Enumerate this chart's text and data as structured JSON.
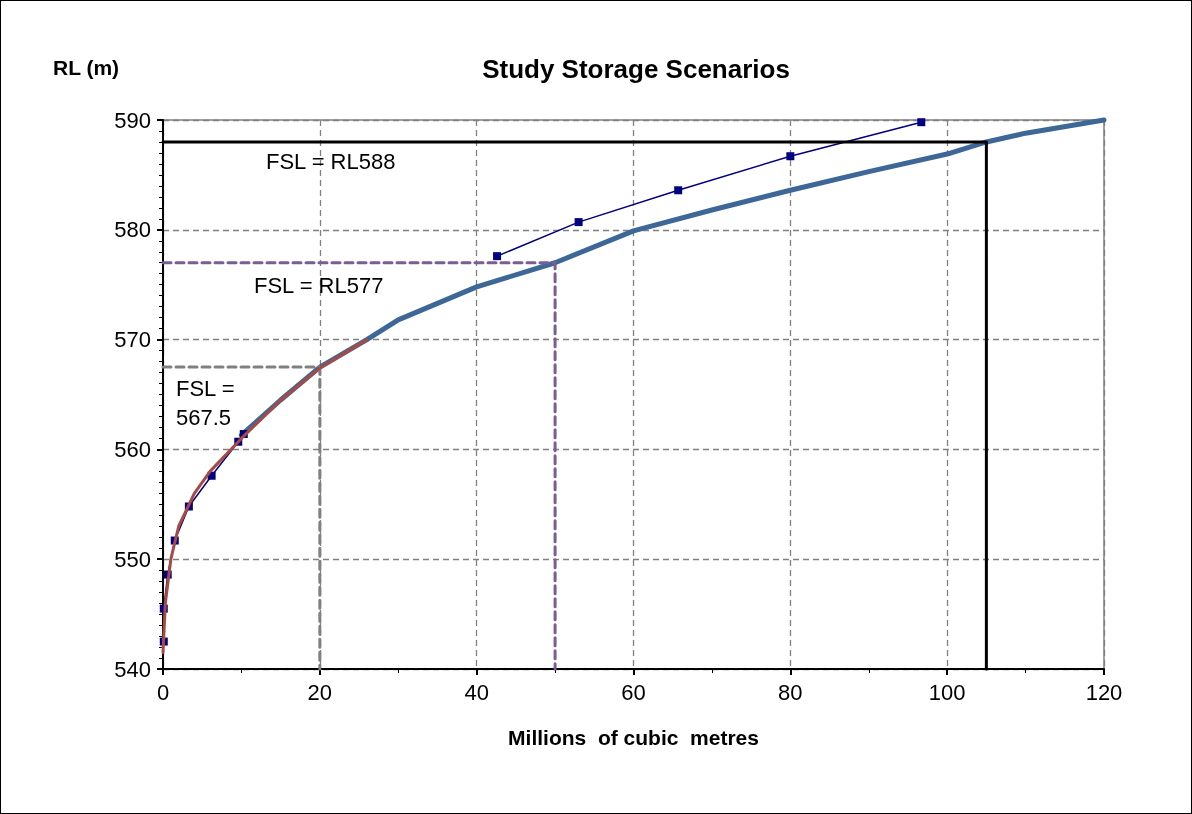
{
  "chart_data": {
    "type": "line",
    "title": "Study Storage Scenarios",
    "xlabel": "Millions  of cubic  metres",
    "ylabel": "RL (m)",
    "xlim": [
      0,
      120
    ],
    "xticks": [
      0,
      20,
      40,
      60,
      80,
      100,
      120
    ],
    "ylim": [
      540,
      590
    ],
    "yticks": [
      540,
      550,
      560,
      570,
      580,
      590
    ],
    "grid": true,
    "series": [
      {
        "color": "#3d6797",
        "marker": "none",
        "line_style": "solid",
        "x": [
          10,
          15,
          20,
          26,
          30,
          40,
          50,
          60,
          70,
          80,
          90,
          100,
          105,
          110,
          120
        ],
        "values": [
          561.3,
          564.5,
          567.5,
          570,
          571.8,
          574.8,
          577,
          579.9,
          581.8,
          583.6,
          585.3,
          586.9,
          588,
          588.8,
          590
        ]
      },
      {
        "color": "#a74a44",
        "marker": "none",
        "line_style": "solid",
        "x": [
          0,
          0.3,
          1,
          2,
          4,
          6,
          10,
          15,
          20,
          26
        ],
        "values": [
          541.5,
          546,
          550,
          553,
          556,
          558,
          561,
          564.5,
          567.4,
          570
        ]
      },
      {
        "color": "#000080",
        "marker": "square",
        "line_style": "solid",
        "x": [
          0.1,
          0.1,
          0.6,
          1.5,
          3.3,
          6.2,
          9.6,
          10.3,
          26,
          42.6,
          53,
          65.7,
          80,
          96.7
        ],
        "values": [
          542.5,
          545.5,
          548.6,
          551.7,
          554.8,
          557.6,
          560.7,
          561.4,
          null,
          577.6,
          580.7,
          583.6,
          586.7,
          589.8
        ]
      },
      {
        "color": "#808080",
        "marker": "none",
        "line_style": "dashed",
        "x": [
          0,
          20,
          20
        ],
        "values": [
          567.5,
          567.5,
          540
        ]
      },
      {
        "color": "#7a5c96",
        "marker": "none",
        "line_style": "dashed",
        "x": [
          0,
          50,
          50
        ],
        "values": [
          577,
          577,
          540
        ]
      },
      {
        "color": "#000000",
        "marker": "none",
        "line_style": "solid",
        "x": [
          0,
          105,
          105
        ],
        "values": [
          588,
          588,
          540
        ]
      }
    ],
    "annotations": [
      "FSL = RL588",
      "FSL = RL577",
      "FSL =\n567.5"
    ]
  }
}
